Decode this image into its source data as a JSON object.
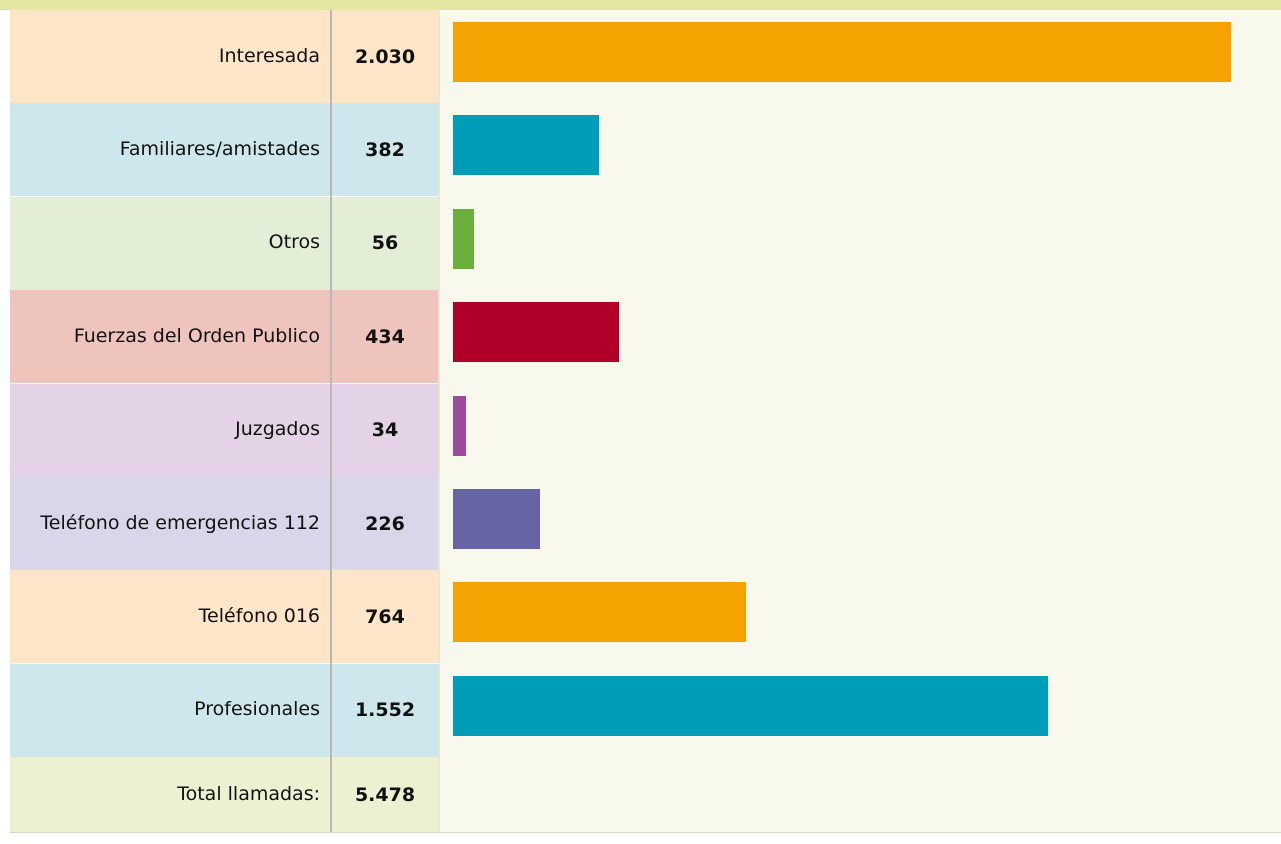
{
  "chart_data": {
    "type": "bar",
    "categories": [
      "Interesada",
      "Familiares/amistades",
      "Otros",
      "Fuerzas del Orden Publico",
      "Juzgados",
      "Teléfono de emergencias 112",
      "Teléfono 016",
      "Profesionales"
    ],
    "values": [
      2030,
      382,
      56,
      434,
      34,
      226,
      764,
      1552
    ],
    "value_labels": [
      "2.030",
      "382",
      "56",
      "434",
      "34",
      "226",
      "764",
      "1.552"
    ],
    "colors": [
      "#f5a300",
      "#009dbb",
      "#6aaf3d",
      "#b0002a",
      "#9b4c9b",
      "#6664a4",
      "#f5a300",
      "#009dbb"
    ],
    "total": {
      "label": "Total llamadas:",
      "value": 5478,
      "value_label": "5.478"
    }
  }
}
